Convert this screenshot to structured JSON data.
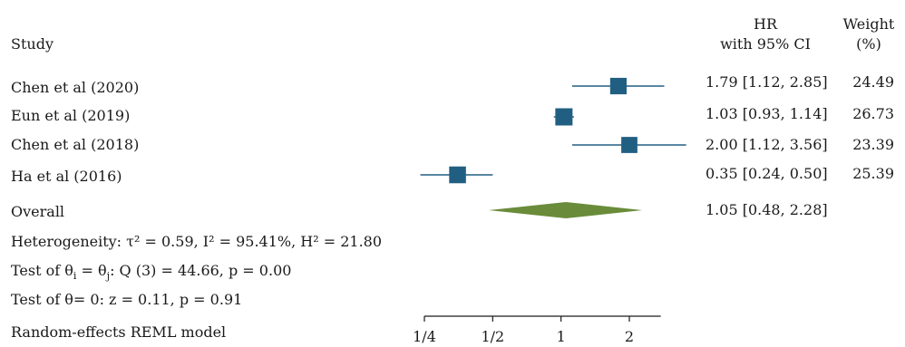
{
  "header": {
    "study": "Study",
    "effect_line1": "HR",
    "effect_line2": "with 95% CI",
    "weight_line1": "Weight",
    "weight_line2": "(%)"
  },
  "chart_data": {
    "type": "forest",
    "x_scale": "log",
    "xlim": [
      0.25,
      2.75
    ],
    "x_ticks": [
      0.25,
      0.5,
      1,
      2
    ],
    "x_tick_labels": [
      "1/4",
      "1/2",
      "1",
      "2"
    ],
    "studies": [
      {
        "label": "Chen et al (2020)",
        "hr": 1.79,
        "lo": 1.12,
        "hi": 2.85,
        "ci_text": "1.79 [1.12, 2.85]",
        "weight": 24.49,
        "weight_text": "24.49"
      },
      {
        "label": "Eun et al (2019)",
        "hr": 1.03,
        "lo": 0.93,
        "hi": 1.14,
        "ci_text": "1.03 [0.93, 1.14]",
        "weight": 26.73,
        "weight_text": "26.73"
      },
      {
        "label": "Chen et al (2018)",
        "hr": 2.0,
        "lo": 1.12,
        "hi": 3.56,
        "ci_text": "2.00 [1.12, 3.56]",
        "weight": 23.39,
        "weight_text": "23.39"
      },
      {
        "label": "Ha et al (2016)",
        "hr": 0.35,
        "lo": 0.24,
        "hi": 0.5,
        "ci_text": "0.35 [0.24, 0.50]",
        "weight": 25.39,
        "weight_text": "25.39"
      }
    ],
    "overall": {
      "label": "Overall",
      "hr": 1.05,
      "lo": 0.48,
      "hi": 2.28,
      "ci_text": "1.05 [0.48, 2.28]"
    },
    "notes": {
      "heterogeneity": "Heterogeneity: τ² = 0.59, I² = 95.41%, H² = 21.80",
      "test_theta_prefix": "Test of θ",
      "test_theta_mid": " = θ",
      "test_theta_suffix": ": Q (3) = 44.66, p = 0.00",
      "test_zero": "Test of θ= 0: z = 0.11, p = 0.91",
      "model": "Random-effects REML model"
    },
    "colors": {
      "study_marker": "#215f82",
      "overall_diamond": "#6a8c3a",
      "axis": "#1a1a1a"
    }
  }
}
